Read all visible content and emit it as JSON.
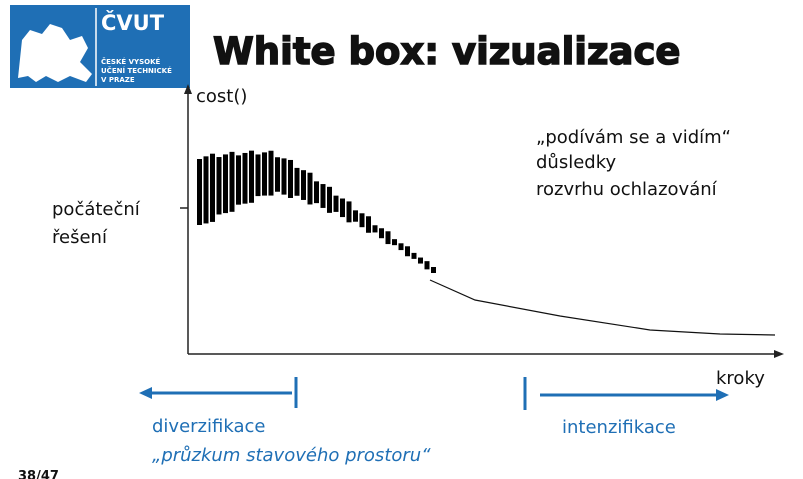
{
  "logo": {
    "name": "ČVUT",
    "lines": [
      "ČESKÉ VYSOKÉ",
      "UČENÍ TECHNICKÉ",
      "V PRAZE"
    ]
  },
  "title": "White box: vizualizace",
  "diagram": {
    "y_label": "cost()",
    "x_label": "kroky",
    "start_label": [
      "počáteční",
      "řešení"
    ],
    "note": [
      "„podívám se a vidím“",
      "důsledky",
      "rozvrhu ochlazování"
    ],
    "left_phase": {
      "label": "diverzifikace",
      "sublabel": "„průzkum stavového prostoru“"
    },
    "right_phase": {
      "label": "intenzifikace"
    }
  },
  "page": "38/47"
}
